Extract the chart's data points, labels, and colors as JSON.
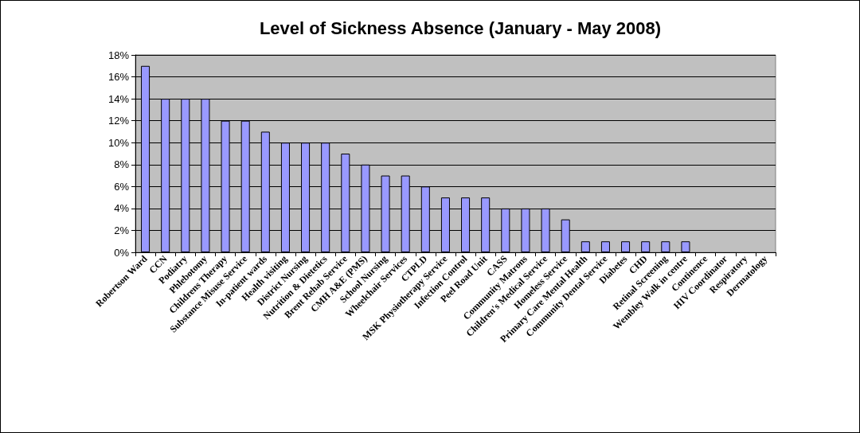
{
  "chart_data": {
    "type": "bar",
    "title": "Level of Sickness Absence (January - May 2008)",
    "categories": [
      "Robertson Ward",
      "CCN",
      "Podiatry",
      "Phlebotomy",
      "Childrens Therapy",
      "Substance Misuse Service",
      "In-patient wards",
      "Health visiting",
      "District Nursing",
      "Nutrition & Dietetics",
      "Brent Rehab Service",
      "CMH A&E (PMS)",
      "School Nursing",
      "Wheelchair Services",
      "CTPLD",
      "MSK Physiotherapy Service",
      "Infection Control",
      "Peel Road Unit",
      "CASS",
      "Community Matrons",
      "Children's Medical Service",
      "Homeless Service",
      "Primary Care Mental Health",
      "Community Dental Service",
      "Diabetes",
      "CHD",
      "Retinal Screening",
      "Wembley Walk in centre",
      "Continence",
      "HIV Coordinator",
      "Respiratory",
      "Dermatology"
    ],
    "values": [
      17,
      14,
      14,
      14,
      12,
      12,
      11,
      10,
      10,
      10,
      9,
      8,
      7,
      7,
      6,
      5,
      5,
      5,
      4,
      4,
      4,
      3,
      1,
      1,
      1,
      1,
      1,
      1,
      0,
      0,
      0,
      0
    ],
    "color": "#9999ff",
    "ylim": [
      0,
      18
    ],
    "yticks": [
      {
        "value": 0,
        "label": "0%"
      },
      {
        "value": 2,
        "label": "2%"
      },
      {
        "value": 4,
        "label": "4%"
      },
      {
        "value": 6,
        "label": "6%"
      },
      {
        "value": 8,
        "label": "8%"
      },
      {
        "value": 10,
        "label": "10%"
      },
      {
        "value": 12,
        "label": "12%"
      },
      {
        "value": 14,
        "label": "14%"
      },
      {
        "value": 16,
        "label": "16%"
      },
      {
        "value": 18,
        "label": "18%"
      }
    ],
    "grid": "y"
  }
}
